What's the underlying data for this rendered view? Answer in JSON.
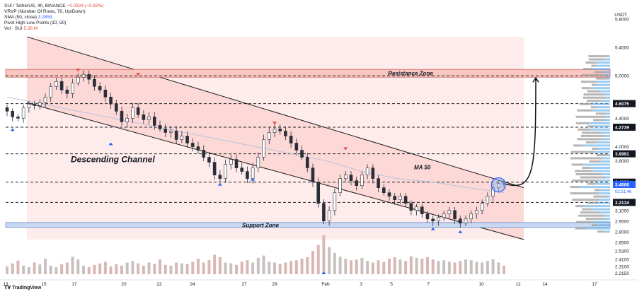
{
  "header": {
    "symbol_line": "SUI / TetherUS, 4h, BINANCE",
    "change": "−0.0324 (−0.92%)",
    "vrvp": "VRVP (Number Of Rows, 70, Up/Down)",
    "sma_label": "SMA (50, close)",
    "sma_value": "3.2859",
    "pivot": "Pivot High Low Points (10, 50)",
    "vol_label": "Vol · SUI",
    "vol_value": "5.38 M"
  },
  "currency": "USDT",
  "logo_text": "TradingView",
  "colors": {
    "up": "#26a69a",
    "down": "#ef5350",
    "candle": "#2a2e39",
    "channel_fill": "#fbd3d0",
    "resistance_fill": "#f9c6c2",
    "support_fill": "#c9d8f2",
    "ma": "#b8c3e0",
    "vp_up": "#5aa8e6",
    "vp_down": "#9e9e9e"
  },
  "chart_data": {
    "type": "candlestick",
    "timeframe": "4h",
    "x_tick_labels": [
      "13",
      "15",
      "17",
      "20",
      "22",
      "24",
      "27",
      "29",
      "Feb",
      "3",
      "5",
      "7",
      "10",
      "12",
      "14",
      "17"
    ],
    "y_tick_labels": [
      "5.8000",
      "5.4000",
      "5.0000",
      "4.6075",
      "4.4000",
      "4.2739",
      "4.0000",
      "3.8991",
      "3.8000",
      "3.4993",
      "3.4666",
      "3.2134",
      "3.1000",
      "2.9500",
      "2.8000",
      "2.6500",
      "2.5300",
      "2.4100",
      "2.3100",
      "2.2150"
    ],
    "ylim": [
      2.2,
      5.85
    ],
    "current_price": "3.4666",
    "countdown": "02:51:46",
    "levels": [
      5.0,
      4.6075,
      4.2739,
      3.8991,
      3.4993,
      3.2134
    ],
    "resistance_zone": {
      "label": "Resistance Zone",
      "low": 4.98,
      "high": 5.09
    },
    "support_zone": {
      "label": "Support Zone",
      "low": 2.86,
      "high": 2.93
    },
    "annotations": {
      "channel": "Descending Channel",
      "ma": "MA 50"
    },
    "channel": {
      "upper": [
        {
          "t": 0,
          "p": 5.55
        },
        {
          "t": 100,
          "p": 3.42
        }
      ],
      "lower": [
        {
          "t": 0,
          "p": 4.62
        },
        {
          "t": 100,
          "p": 2.69
        }
      ]
    },
    "projection_target": 5.0,
    "closes": [
      4.5,
      4.42,
      4.4,
      4.55,
      4.6,
      4.58,
      4.62,
      4.7,
      4.85,
      4.92,
      4.8,
      4.75,
      4.9,
      4.98,
      5.02,
      4.95,
      4.85,
      4.8,
      4.7,
      4.6,
      4.5,
      4.35,
      4.4,
      4.55,
      4.45,
      4.38,
      4.42,
      4.3,
      4.25,
      4.2,
      4.22,
      4.1,
      4.15,
      4.05,
      4.0,
      3.95,
      3.85,
      3.78,
      3.6,
      3.55,
      3.75,
      3.82,
      3.7,
      3.65,
      3.55,
      3.7,
      3.85,
      4.1,
      4.2,
      4.25,
      4.22,
      4.15,
      4.05,
      3.95,
      3.85,
      3.7,
      3.5,
      3.2,
      2.95,
      3.1,
      3.35,
      3.55,
      3.6,
      3.52,
      3.45,
      3.6,
      3.7,
      3.55,
      3.42,
      3.35,
      3.3,
      3.25,
      3.3,
      3.2,
      3.1,
      3.15,
      3.05,
      2.98,
      2.95,
      3.0,
      3.05,
      3.1,
      2.98,
      2.92,
      2.98,
      3.05,
      3.1,
      3.2,
      3.3,
      3.42,
      3.48,
      3.47
    ],
    "volumes": [
      20,
      28,
      35,
      22,
      18,
      30,
      25,
      40,
      22,
      18,
      26,
      30,
      45,
      38,
      22,
      18,
      24,
      28,
      32,
      20,
      26,
      22,
      30,
      34,
      28,
      22,
      30,
      26,
      38,
      24,
      22,
      30,
      28,
      26,
      32,
      40,
      30,
      36,
      50,
      44,
      30,
      28,
      24,
      32,
      36,
      30,
      42,
      48,
      32,
      30,
      26,
      30,
      34,
      36,
      40,
      44,
      60,
      75,
      100,
      70,
      55,
      45,
      40,
      36,
      38,
      42,
      34,
      30,
      36,
      32,
      40,
      44,
      38,
      34,
      46,
      42,
      40,
      44,
      38,
      34,
      36,
      32,
      30,
      34,
      38,
      36,
      32,
      30,
      34,
      38,
      30,
      22
    ],
    "ma50": [
      4.7,
      4.6,
      4.5,
      4.4,
      4.3,
      4.2,
      4.1,
      4.0,
      3.9,
      3.8,
      3.65,
      3.55,
      3.5,
      3.42,
      3.35
    ],
    "pivot_highs": [
      {
        "i": 13,
        "p": 5.03
      },
      {
        "i": 24,
        "p": 4.97
      },
      {
        "i": 49,
        "p": 4.28
      },
      {
        "i": 62,
        "p": 3.92
      }
    ],
    "pivot_lows": [
      {
        "i": 1,
        "p": 4.3
      },
      {
        "i": 19,
        "p": 4.1
      },
      {
        "i": 39,
        "p": 3.53
      },
      {
        "i": 45,
        "p": 3.6
      },
      {
        "i": 58,
        "p": 2.28
      },
      {
        "i": 78,
        "p": 2.9
      },
      {
        "i": 83,
        "p": 2.86
      }
    ]
  }
}
